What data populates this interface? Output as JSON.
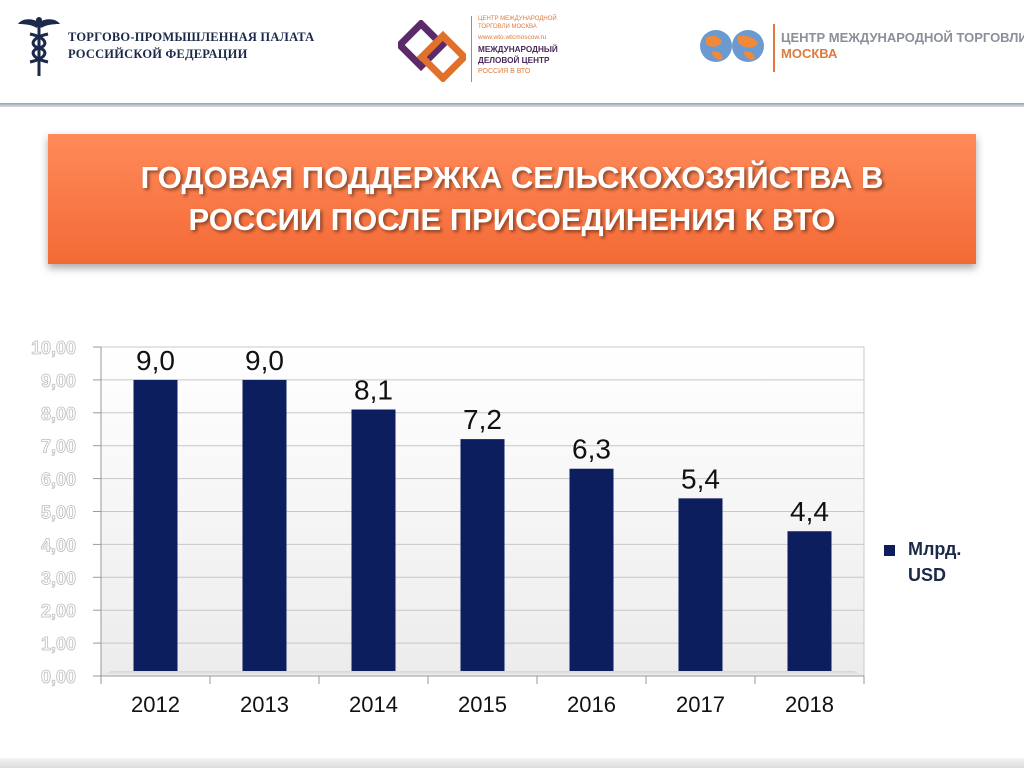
{
  "header": {
    "left_org_line1": "ТОРГОВО-ПРОМЫШЛЕННАЯ ПАЛАТА",
    "left_org_line2": "РОССИЙСКОЙ ФЕДЕРАЦИИ",
    "mid_line1": "ЦЕНТР МЕЖДУНАРОДНОЙ",
    "mid_line2": "ТОРГОВЛИ МОСКВА",
    "mid_url": "www.wto.wtcmoscow.ru",
    "mid_line4": "МЕЖДУНАРОДНЫЙ",
    "mid_line5": "ДЕЛОВОЙ ЦЕНТР",
    "mid_line6": "РОССИЯ В ВТО",
    "right_line1": "ЦЕНТР МЕЖДУНАРОДНОЙ ТОРГОВЛИ",
    "right_line2": "МОСКВА"
  },
  "slide": {
    "title": "ГОДОВАЯ ПОДДЕРЖКА СЕЛЬСКОХОЗЯЙСТВА В РОССИИ ПОСЛЕ ПРИСОЕДИНЕНИЯ К ВТО"
  },
  "colors": {
    "bar": "#0d1e5f",
    "title_bg": "#f47b48",
    "ytick": "#ffffff"
  },
  "chart_data": {
    "type": "bar",
    "categories": [
      "2012",
      "2013",
      "2014",
      "2015",
      "2016",
      "2017",
      "2018"
    ],
    "values": [
      9.0,
      9.0,
      8.1,
      7.2,
      6.3,
      5.4,
      4.4
    ],
    "data_labels": [
      "9,0",
      "9,0",
      "8,1",
      "7,2",
      "6,3",
      "5,4",
      "4,4"
    ],
    "ylim": [
      0,
      10
    ],
    "yticks": [
      "0,00",
      "1,00",
      "2,00",
      "3,00",
      "4,00",
      "5,00",
      "6,00",
      "7,00",
      "8,00",
      "9,00",
      "10,00"
    ],
    "series": [
      {
        "name": "Млрд. USD",
        "values": [
          9.0,
          9.0,
          8.1,
          7.2,
          6.3,
          5.4,
          4.4
        ]
      }
    ],
    "legend_position": "right",
    "grid": true
  }
}
